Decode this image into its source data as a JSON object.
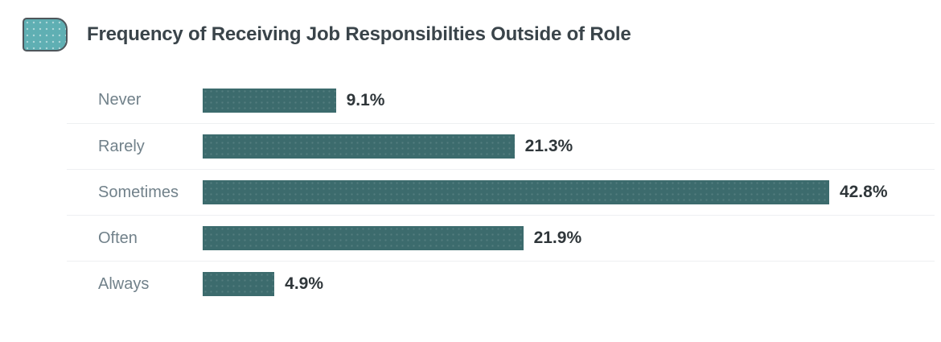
{
  "icons": {
    "legend_swatch": "teal-rounded-rect-swatch"
  },
  "chart_data": {
    "type": "bar",
    "orientation": "horizontal",
    "title": "Frequency of Receiving Job Responsibilties Outside of Role",
    "categories": [
      "Never",
      "Rarely",
      "Sometimes",
      "Often",
      "Always"
    ],
    "values": [
      9.1,
      21.3,
      42.8,
      21.9,
      4.9
    ],
    "value_labels": [
      "9.1%",
      "21.3%",
      "42.8%",
      "21.9%",
      "4.9%"
    ],
    "xlabel": "",
    "ylabel": "",
    "xlim": [
      0,
      50
    ],
    "grid": false,
    "legend_position": "none",
    "colors": {
      "bar": "#3c6b6d",
      "legend_swatch": "#5fafb3",
      "title_text": "#3a444a",
      "category_text": "#71818a",
      "value_text": "#2f363a",
      "row_separator": "#eef0f2",
      "background": "#ffffff"
    }
  }
}
